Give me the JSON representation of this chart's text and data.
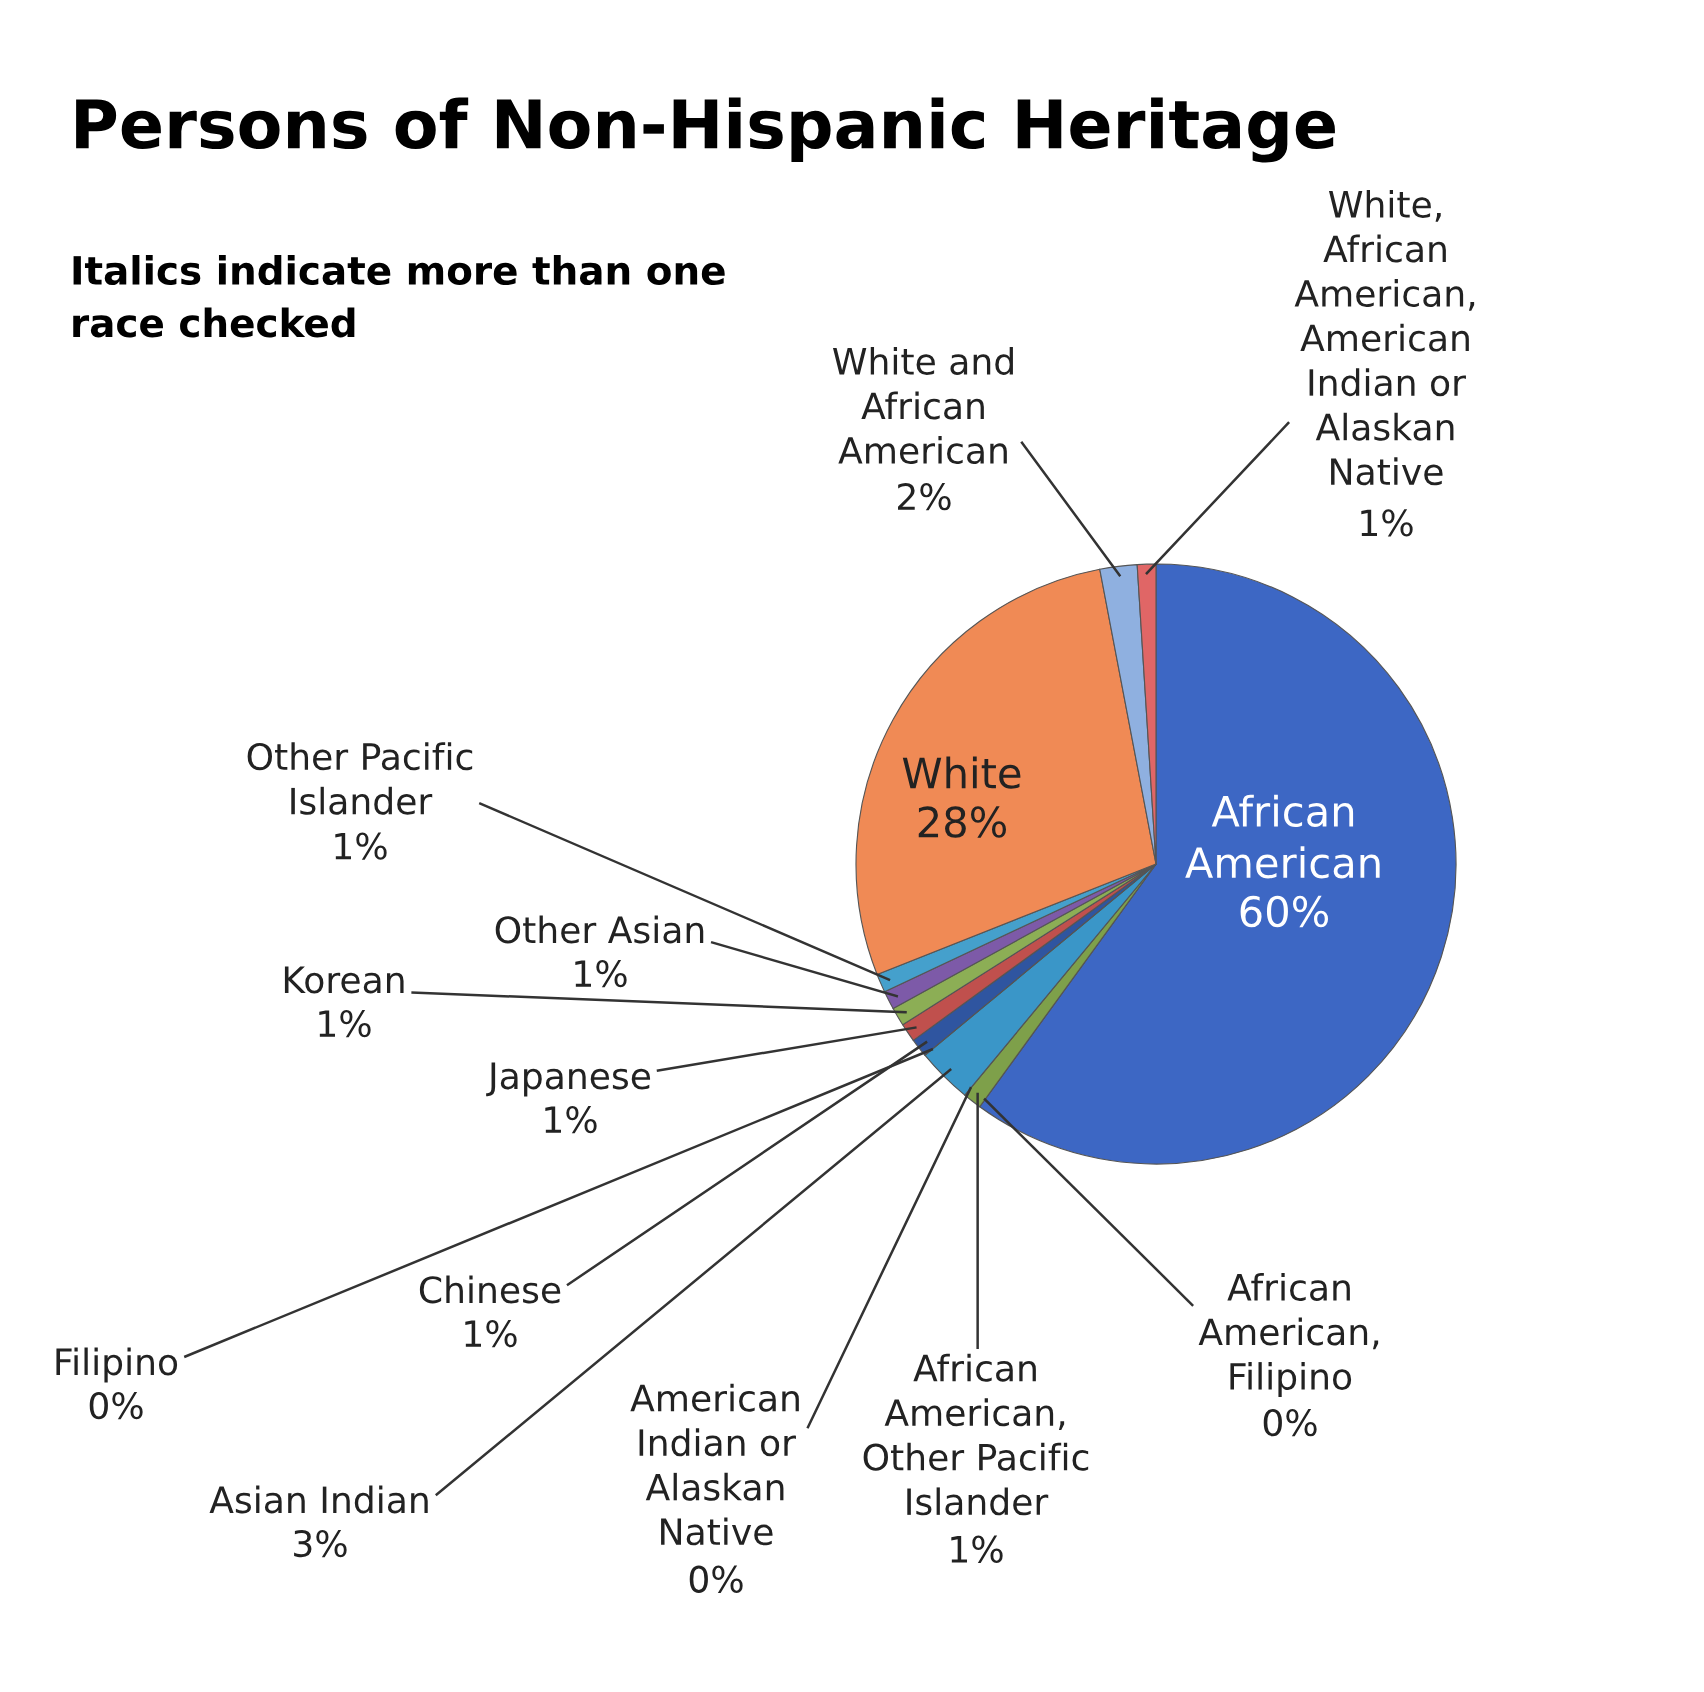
{
  "chart_data": {
    "type": "pie",
    "title": "Persons of Non-Hispanic Heritage",
    "annotations": [
      "Italics indicate more than one race checked"
    ],
    "categories": [
      "African American",
      "African American, Filipino",
      "African American, Other Pacific Islander",
      "American Indian or Alaskan Native",
      "Asian Indian",
      "Filipino",
      "Chinese",
      "Japanese",
      "Korean",
      "Other Asian",
      "Other Pacific Islander",
      "White",
      "White and African American",
      "White, African American, American Indian or Alaskan Native"
    ],
    "values": [
      60,
      0,
      1,
      0,
      3,
      0,
      1,
      1,
      1,
      1,
      1,
      28,
      2,
      1
    ],
    "colors": [
      "#3d67c4",
      "#9e2a2a",
      "#7ea04a",
      "#7150a0",
      "#3a96c8",
      "#ee8340",
      "#2f55a0",
      "#c0504d",
      "#8cae55",
      "#7d5aa8",
      "#45a0cc",
      "#f08a55",
      "#8fb0e0",
      "#e06666"
    ],
    "value_labels": [
      "60%",
      "0%",
      "1%",
      "0%",
      "3%",
      "0%",
      "1%",
      "1%",
      "1%",
      "1%",
      "1%",
      "28%",
      "2%",
      "1%"
    ],
    "legend": false
  }
}
